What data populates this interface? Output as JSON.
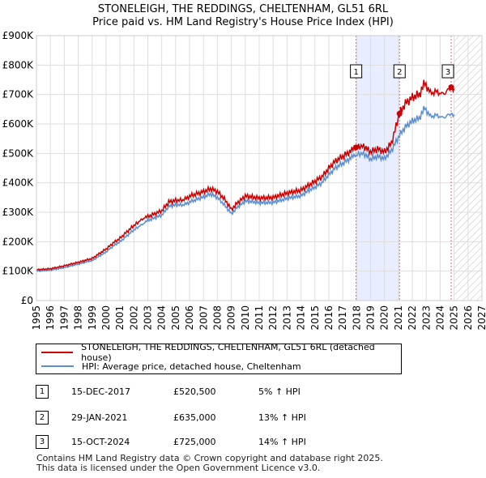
{
  "title_line1": "STONELEIGH, THE REDDINGS, CHELTENHAM, GL51 6RL",
  "title_line2": "Price paid vs. HM Land Registry's House Price Index (HPI)",
  "chart_data": {
    "type": "line",
    "title": "STONELEIGH, THE REDDINGS, CHELTENHAM, GL51 6RL - Price paid vs. HM Land Registry's House Price Index (HPI)",
    "xlabel": "",
    "ylabel": "",
    "xlim": [
      1995,
      2027
    ],
    "ylim": [
      0,
      900000
    ],
    "grid": true,
    "x_ticks": [
      "1995",
      "1996",
      "1997",
      "1998",
      "1999",
      "2000",
      "2001",
      "2002",
      "2003",
      "2004",
      "2005",
      "2006",
      "2007",
      "2008",
      "2009",
      "2010",
      "2011",
      "2012",
      "2013",
      "2014",
      "2015",
      "2016",
      "2017",
      "2018",
      "2019",
      "2020",
      "2021",
      "2022",
      "2023",
      "2024",
      "2025",
      "2026",
      "2027"
    ],
    "y_ticks": [
      {
        "value": 0,
        "label": "£0"
      },
      {
        "value": 100000,
        "label": "£100K"
      },
      {
        "value": 200000,
        "label": "£200K"
      },
      {
        "value": 300000,
        "label": "£300K"
      },
      {
        "value": 400000,
        "label": "£400K"
      },
      {
        "value": 500000,
        "label": "£500K"
      },
      {
        "value": 600000,
        "label": "£600K"
      },
      {
        "value": 700000,
        "label": "£700K"
      },
      {
        "value": 800000,
        "label": "£800K"
      },
      {
        "value": 900000,
        "label": "£900K"
      }
    ],
    "colors": {
      "property": "#cc0000",
      "hpi": "#5b8fd0",
      "shade": "#e8eeff",
      "marker_line": "#dd6677",
      "grid": "#dddddd"
    },
    "shaded_regions": [
      {
        "from": 2017.96,
        "to": 2021.08
      }
    ],
    "forecast_from": 2025.0,
    "series": [
      {
        "name": "STONELEIGH, THE REDDINGS, CHELTENHAM, GL51 6RL (detached house)",
        "x": [
          1995.0,
          1996.0,
          1997.0,
          1998.0,
          1999.0,
          2000.0,
          2000.5,
          2001.0,
          2002.0,
          2002.7,
          2003.0,
          2004.0,
          2004.5,
          2005.0,
          2005.6,
          2006.0,
          2007.0,
          2007.5,
          2008.0,
          2008.5,
          2009.0,
          2009.4,
          2010.0,
          2010.5,
          2011.0,
          2012.0,
          2012.5,
          2013.0,
          2014.0,
          2014.5,
          2015.0,
          2015.5,
          2016.0,
          2016.5,
          2017.0,
          2017.5,
          2017.96,
          2018.5,
          2019.0,
          2019.5,
          2020.0,
          2020.5,
          2021.08,
          2021.5,
          2022.0,
          2022.5,
          2022.9,
          2023.3,
          2023.8,
          2024.2,
          2024.79,
          2025.0
        ],
        "values": [
          105000,
          108000,
          118000,
          130000,
          143000,
          175000,
          195000,
          212000,
          255000,
          280000,
          285000,
          305000,
          335000,
          340000,
          342000,
          355000,
          370000,
          380000,
          370000,
          345000,
          310000,
          330000,
          355000,
          352000,
          348000,
          350000,
          358000,
          365000,
          375000,
          390000,
          405000,
          420000,
          450000,
          475000,
          490000,
          505000,
          520500,
          525000,
          505000,
          515000,
          505000,
          535000,
          635000,
          670000,
          690000,
          700000,
          740000,
          705000,
          710000,
          700000,
          725000,
          720000
        ]
      },
      {
        "name": "HPI: Average price, detached house, Cheltenham",
        "x": [
          1995.0,
          1996.0,
          1997.0,
          1998.0,
          1999.0,
          2000.0,
          2000.5,
          2001.0,
          2002.0,
          2002.7,
          2003.0,
          2004.0,
          2004.5,
          2005.0,
          2005.6,
          2006.0,
          2007.0,
          2007.5,
          2008.0,
          2008.5,
          2009.0,
          2009.4,
          2010.0,
          2010.5,
          2011.0,
          2012.0,
          2012.5,
          2013.0,
          2014.0,
          2014.5,
          2015.0,
          2015.5,
          2016.0,
          2016.5,
          2017.0,
          2017.5,
          2017.96,
          2018.5,
          2019.0,
          2019.5,
          2020.0,
          2020.5,
          2021.08,
          2021.5,
          2022.0,
          2022.5,
          2022.9,
          2023.3,
          2023.8,
          2024.2,
          2024.79,
          2025.0
        ],
        "values": [
          100000,
          103000,
          112000,
          124000,
          136000,
          165000,
          185000,
          200000,
          240000,
          262000,
          272000,
          290000,
          320000,
          325000,
          325000,
          335000,
          352000,
          362000,
          350000,
          325000,
          295000,
          315000,
          338000,
          336000,
          332000,
          333000,
          340000,
          347000,
          356000,
          372000,
          385000,
          400000,
          428000,
          452000,
          466000,
          482000,
          496000,
          500000,
          480000,
          490000,
          482000,
          510000,
          562000,
          590000,
          610000,
          620000,
          655000,
          625000,
          630000,
          620000,
          636000,
          632000
        ]
      }
    ],
    "sales": [
      {
        "label": "1",
        "x": 2017.96,
        "value": 520500
      },
      {
        "label": "2",
        "x": 2021.08,
        "value": 635000
      },
      {
        "label": "3",
        "x": 2024.79,
        "value": 725000
      }
    ]
  },
  "legend": {
    "property_label": "STONELEIGH, THE REDDINGS, CHELTENHAM, GL51 6RL (detached house)",
    "hpi_label": "HPI: Average price, detached house, Cheltenham"
  },
  "transactions": [
    {
      "num": "1",
      "date": "15-DEC-2017",
      "price": "£520,500",
      "hpi": "5% ↑ HPI"
    },
    {
      "num": "2",
      "date": "29-JAN-2021",
      "price": "£635,000",
      "hpi": "13% ↑ HPI"
    },
    {
      "num": "3",
      "date": "15-OCT-2024",
      "price": "£725,000",
      "hpi": "14% ↑ HPI"
    }
  ],
  "footer": {
    "line1": "Contains HM Land Registry data © Crown copyright and database right 2025.",
    "line2": "This data is licensed under the Open Government Licence v3.0."
  }
}
